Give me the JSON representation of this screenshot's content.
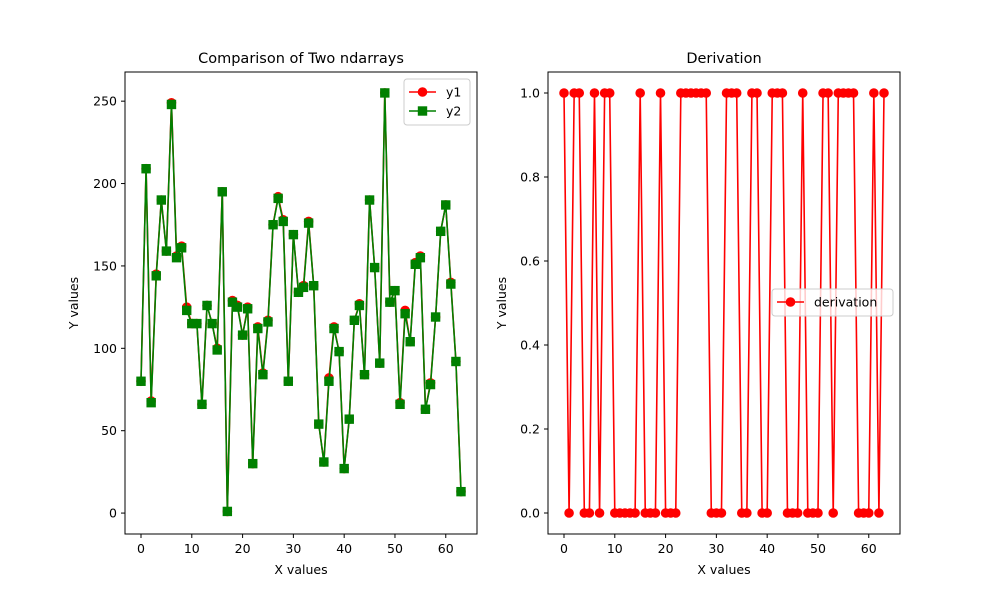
{
  "chart_data": [
    {
      "type": "line",
      "title": "Comparison of Two ndarrays",
      "xlabel": "X values",
      "ylabel": "Y values",
      "xlim": [
        -3.15,
        66.15
      ],
      "ylim": [
        -12.7,
        267.7
      ],
      "xticks": [
        0,
        10,
        20,
        30,
        40,
        50,
        60
      ],
      "yticks": [
        0,
        50,
        100,
        150,
        200,
        250
      ],
      "grid": false,
      "legend_position": "upper right",
      "x": [
        0,
        1,
        2,
        3,
        4,
        5,
        6,
        7,
        8,
        9,
        10,
        11,
        12,
        13,
        14,
        15,
        16,
        17,
        18,
        19,
        20,
        21,
        22,
        23,
        24,
        25,
        26,
        27,
        28,
        29,
        30,
        31,
        32,
        33,
        34,
        35,
        36,
        37,
        38,
        39,
        40,
        41,
        42,
        43,
        44,
        45,
        46,
        47,
        48,
        49,
        50,
        51,
        52,
        53,
        54,
        55,
        56,
        57,
        58,
        59,
        60,
        61,
        62,
        63
      ],
      "series": [
        {
          "name": "y1",
          "color": "#ff0000",
          "marker": "circle",
          "values": [
            80,
            209,
            68,
            145,
            190,
            159,
            249,
            156,
            162,
            125,
            115,
            115,
            66,
            126,
            115,
            100,
            195,
            1,
            129,
            126,
            108,
            125,
            30,
            113,
            85,
            117,
            175,
            192,
            178,
            80,
            169,
            134,
            138,
            177,
            138,
            54,
            31,
            82,
            113,
            98,
            27,
            57,
            117,
            127,
            84,
            190,
            149,
            91,
            255,
            128,
            135,
            67,
            123,
            104,
            152,
            156,
            63,
            79,
            119,
            171,
            187,
            140,
            92,
            13
          ]
        },
        {
          "name": "y2",
          "color": "#008000",
          "marker": "square",
          "values": [
            80,
            209,
            67,
            144,
            190,
            159,
            248,
            155,
            161,
            123,
            115,
            115,
            66,
            126,
            115,
            99,
            195,
            1,
            128,
            125,
            108,
            124,
            30,
            112,
            84,
            116,
            175,
            191,
            177,
            80,
            169,
            134,
            137,
            176,
            138,
            54,
            31,
            80,
            112,
            98,
            27,
            57,
            117,
            126,
            84,
            190,
            149,
            91,
            255,
            128,
            135,
            66,
            121,
            104,
            151,
            155,
            63,
            78,
            119,
            171,
            187,
            139,
            92,
            13
          ]
        }
      ]
    },
    {
      "type": "line",
      "title": "Derivation",
      "xlabel": "X values",
      "ylabel": "Y values",
      "xlim": [
        -3.15,
        66.15
      ],
      "ylim": [
        -0.05,
        1.05
      ],
      "xticks": [
        0,
        10,
        20,
        30,
        40,
        50,
        60
      ],
      "yticks": [
        0.0,
        0.2,
        0.4,
        0.6,
        0.8,
        1.0
      ],
      "ytick_labels": [
        "0.0",
        "0.2",
        "0.4",
        "0.6",
        "0.8",
        "1.0"
      ],
      "grid": false,
      "legend_position": "center right",
      "x": [
        0,
        1,
        2,
        3,
        4,
        5,
        6,
        7,
        8,
        9,
        10,
        11,
        12,
        13,
        14,
        15,
        16,
        17,
        18,
        19,
        20,
        21,
        22,
        23,
        24,
        25,
        26,
        27,
        28,
        29,
        30,
        31,
        32,
        33,
        34,
        35,
        36,
        37,
        38,
        39,
        40,
        41,
        42,
        43,
        44,
        45,
        46,
        47,
        48,
        49,
        50,
        51,
        52,
        53,
        54,
        55,
        56,
        57,
        58,
        59,
        60,
        61,
        62,
        63
      ],
      "series": [
        {
          "name": "derivation",
          "color": "#ff0000",
          "marker": "circle",
          "values": [
            1,
            0,
            1,
            1,
            0,
            0,
            1,
            0,
            1,
            1,
            0,
            0,
            0,
            0,
            0,
            1,
            0,
            0,
            0,
            1,
            0,
            0,
            0,
            1,
            1,
            1,
            1,
            1,
            1,
            0,
            0,
            0,
            1,
            1,
            1,
            0,
            0,
            1,
            1,
            0,
            0,
            1,
            1,
            1,
            0,
            0,
            0,
            1,
            0,
            0,
            0,
            1,
            1,
            0,
            1,
            1,
            1,
            1,
            0,
            0,
            0,
            1,
            0,
            1
          ]
        }
      ]
    }
  ]
}
